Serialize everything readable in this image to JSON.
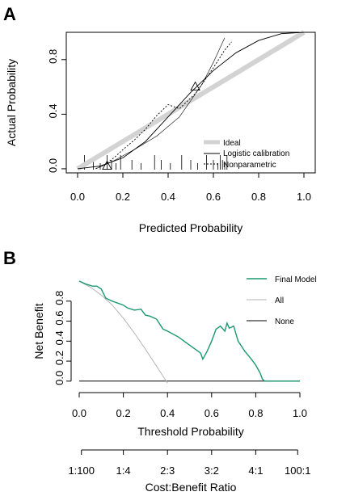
{
  "panels": {
    "A": {
      "letter": "A",
      "chart_data": {
        "type": "line",
        "xlabel": "Predicted Probability",
        "ylabel": "Actual Probability",
        "xlim": [
          -0.05,
          1.05
        ],
        "ylim": [
          -0.03,
          1.0
        ],
        "xticks": [
          "0.0",
          "0.2",
          "0.4",
          "0.6",
          "0.8",
          "1.0"
        ],
        "xtick_values": [
          0,
          0.2,
          0.4,
          0.6,
          0.8,
          1.0
        ],
        "yticks": [
          "0.0",
          "0.4",
          "0.8"
        ],
        "ytick_values": [
          0,
          0.4,
          0.8
        ],
        "legend_position": "bottom-right",
        "series": [
          {
            "name": "Ideal",
            "x": [
              0,
              1
            ],
            "y": [
              0,
              1
            ]
          },
          {
            "name": "Logistic calibration",
            "x": [
              0.0,
              0.1,
              0.2,
              0.3,
              0.4,
              0.5,
              0.55,
              0.6,
              0.7,
              0.8,
              0.9,
              1.0
            ],
            "y": [
              0.0,
              0.02,
              0.08,
              0.2,
              0.38,
              0.56,
              0.64,
              0.72,
              0.85,
              0.94,
              0.99,
              1.0
            ]
          },
          {
            "name": "Nonparametric",
            "x": [
              0.08,
              0.12,
              0.16,
              0.2,
              0.25,
              0.3,
              0.35,
              0.4,
              0.45,
              0.5,
              0.52,
              0.55,
              0.6,
              0.65,
              0.68
            ],
            "y": [
              0.0,
              0.03,
              0.08,
              0.14,
              0.21,
              0.29,
              0.39,
              0.47,
              0.44,
              0.52,
              0.55,
              0.62,
              0.74,
              0.87,
              0.93
            ]
          },
          {
            "name": "",
            "x": [
              0.08,
              0.15,
              0.25,
              0.35,
              0.45,
              0.5,
              0.55,
              0.6,
              0.65
            ],
            "y": [
              0.0,
              0.05,
              0.14,
              0.24,
              0.38,
              0.5,
              0.62,
              0.78,
              0.96
            ]
          }
        ],
        "triangles": [
          {
            "x": 0.13,
            "y": 0.02
          },
          {
            "x": 0.52,
            "y": 0.6
          }
        ],
        "rug": [
          0.03,
          0.07,
          0.1,
          0.13,
          0.15,
          0.17,
          0.19,
          0.24,
          0.28,
          0.34,
          0.37,
          0.41,
          0.46,
          0.5,
          0.53,
          0.57,
          0.6,
          0.62,
          0.63,
          0.64,
          0.65,
          0.66
        ]
      }
    },
    "B": {
      "letter": "B",
      "chart_data": {
        "type": "line",
        "xlabel": "Threshold Probability",
        "ylabel": "Net Benefit",
        "xlim": [
          0,
          1.0
        ],
        "ylim": [
          -0.05,
          1.0
        ],
        "xticks": [
          "0.0",
          "0.2",
          "0.4",
          "0.6",
          "0.8",
          "1.0"
        ],
        "xtick_values": [
          0,
          0.2,
          0.4,
          0.6,
          0.8,
          1.0
        ],
        "yticks": [
          "0.0",
          "0.2",
          "0.4",
          "0.6",
          "0.8"
        ],
        "ytick_values": [
          0,
          0.2,
          0.4,
          0.6,
          0.8
        ],
        "legend_position": "top-right",
        "colors": {
          "final_model": "#1a9a6c",
          "all": "#b5b5b5",
          "none": "#000000"
        },
        "series": [
          {
            "name": "Final Model",
            "x": [
              0.0,
              0.03,
              0.06,
              0.08,
              0.1,
              0.12,
              0.15,
              0.2,
              0.22,
              0.25,
              0.28,
              0.3,
              0.32,
              0.35,
              0.38,
              0.4,
              0.45,
              0.5,
              0.55,
              0.56,
              0.58,
              0.6,
              0.62,
              0.64,
              0.66,
              0.67,
              0.68,
              0.7,
              0.72,
              0.75,
              0.78,
              0.8,
              0.82,
              0.83,
              0.84,
              1.0
            ],
            "y": [
              1.0,
              0.97,
              0.95,
              0.95,
              0.92,
              0.83,
              0.8,
              0.76,
              0.73,
              0.71,
              0.72,
              0.66,
              0.65,
              0.62,
              0.52,
              0.5,
              0.44,
              0.36,
              0.28,
              0.22,
              0.3,
              0.4,
              0.52,
              0.55,
              0.5,
              0.58,
              0.53,
              0.55,
              0.4,
              0.3,
              0.22,
              0.16,
              0.08,
              0.02,
              0.0,
              0.0
            ]
          },
          {
            "name": "All",
            "x": [
              0.0,
              0.05,
              0.1,
              0.15,
              0.2,
              0.25,
              0.3,
              0.35,
              0.38,
              0.4
            ],
            "y": [
              1.0,
              0.94,
              0.86,
              0.76,
              0.63,
              0.48,
              0.32,
              0.15,
              0.05,
              -0.02
            ]
          },
          {
            "name": "None",
            "x": [
              0,
              1.0
            ],
            "y": [
              0,
              0
            ]
          }
        ],
        "cost_benefit": {
          "label": "Cost:Benefit Ratio",
          "ticks": [
            "1:100",
            "1:4",
            "2:3",
            "3:2",
            "4:1",
            "100:1"
          ],
          "tick_threshold_values": [
            0.01,
            0.2,
            0.4,
            0.6,
            0.8,
            0.99
          ]
        }
      }
    }
  }
}
